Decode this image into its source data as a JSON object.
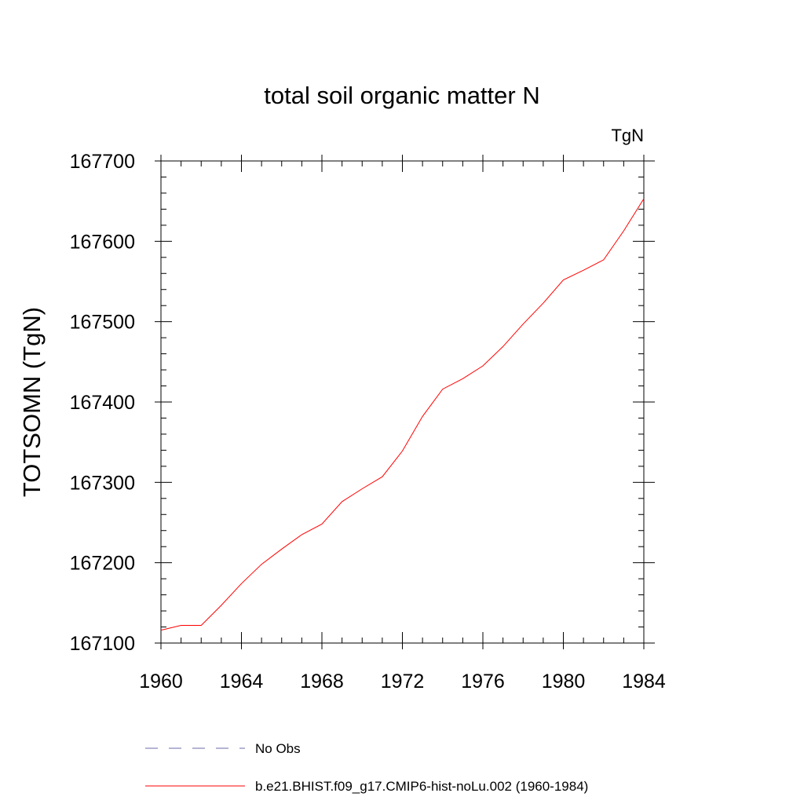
{
  "chart_data": {
    "type": "line",
    "title": "total soil organic matter N",
    "units": "TgN",
    "ylabel": "TOTSOMN  (TgN)",
    "xlabel": "",
    "xlim": [
      1960,
      1984
    ],
    "ylim": [
      167100,
      167700
    ],
    "xticks": [
      1960,
      1964,
      1968,
      1972,
      1976,
      1980,
      1984
    ],
    "yticks": [
      167100,
      167200,
      167300,
      167400,
      167500,
      167600,
      167700
    ],
    "grid": false,
    "legend_position": "bottom",
    "series": [
      {
        "name": "No Obs",
        "style": "dashed",
        "color": "#6a6aa8",
        "x": [],
        "y": []
      },
      {
        "name": "b.e21.BHIST.f09_g17.CMIP6-hist-noLu.002 (1960-1984)",
        "style": "solid",
        "color": "#ff0000",
        "x": [
          1960,
          1961,
          1962,
          1963,
          1964,
          1965,
          1966,
          1967,
          1968,
          1969,
          1970,
          1971,
          1972,
          1973,
          1974,
          1975,
          1976,
          1977,
          1978,
          1979,
          1980,
          1981,
          1982,
          1983,
          1984
        ],
        "y": [
          167116,
          167122,
          167122,
          167147,
          167174,
          167198,
          167217,
          167235,
          167248,
          167276,
          167292,
          167307,
          167339,
          167382,
          167416,
          167429,
          167445,
          167469,
          167497,
          167523,
          167552,
          167564,
          167577,
          167613,
          167653
        ]
      }
    ]
  }
}
